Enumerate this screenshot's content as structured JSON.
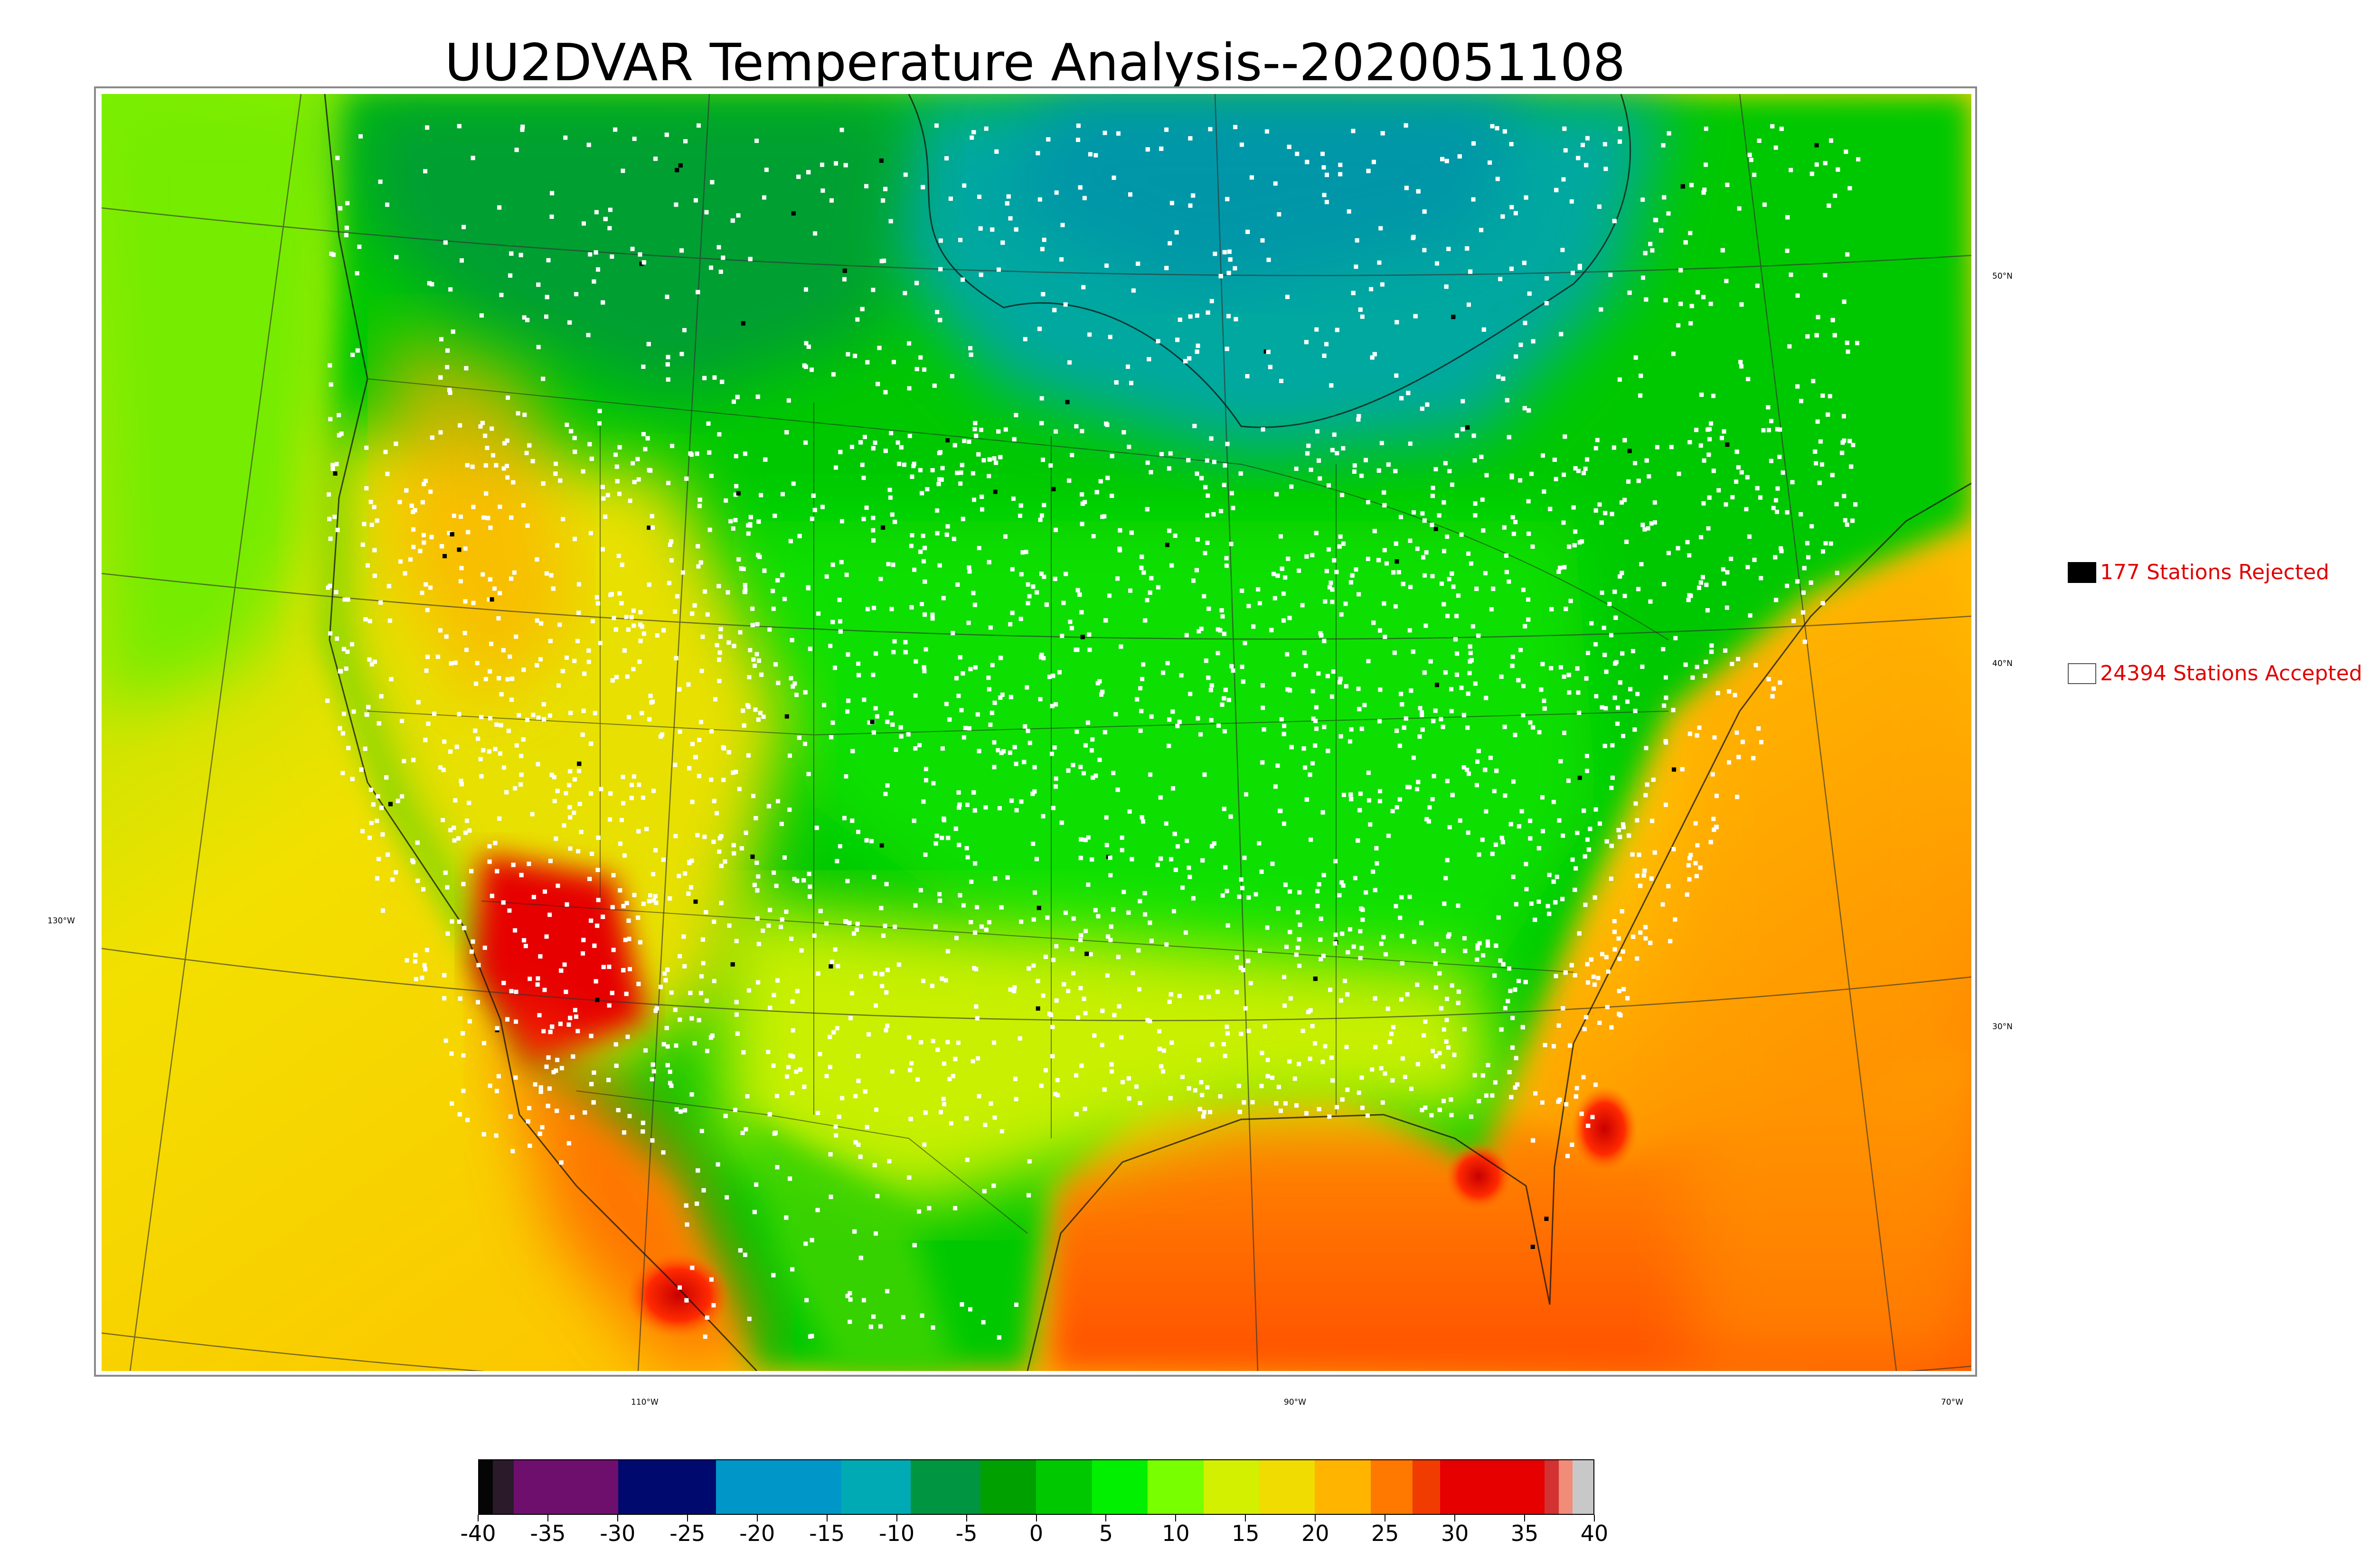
{
  "title": "UU2DVAR Temperature Analysis--2020051108",
  "legend": {
    "rejected": {
      "label": "177 Stations Rejected",
      "count": 177,
      "swatch_color": "#000000"
    },
    "accepted": {
      "label": "24394 Stations Accepted",
      "count": 24394,
      "swatch_color": "#ffffff"
    }
  },
  "grid_labels": {
    "lat_50": "50°N",
    "lat_40": "40°N",
    "lat_30": "30°N",
    "lon_130": "130°W",
    "lon_110": "110°W",
    "lon_90": "90°W",
    "lon_70": "70°W"
  },
  "colorbar": {
    "ticks": [
      "-40",
      "-35",
      "-30",
      "-25",
      "-20",
      "-15",
      "-10",
      "-5",
      "0",
      "5",
      "10",
      "15",
      "20",
      "25",
      "30",
      "35",
      "40"
    ],
    "range": [
      -40,
      40
    ],
    "segments": [
      {
        "from": -40,
        "to": -39,
        "color": "#050505"
      },
      {
        "from": -39,
        "to": -37.5,
        "color": "#2a1a2a"
      },
      {
        "from": -37.5,
        "to": -30,
        "color": "#6e0f6e"
      },
      {
        "from": -30,
        "to": -23,
        "color": "#000a6e"
      },
      {
        "from": -23,
        "to": -14,
        "color": "#0096c8"
      },
      {
        "from": -14,
        "to": -9,
        "color": "#00aab4"
      },
      {
        "from": -9,
        "to": -4,
        "color": "#009641"
      },
      {
        "from": -4,
        "to": 0,
        "color": "#00a000"
      },
      {
        "from": 0,
        "to": 4,
        "color": "#00c800"
      },
      {
        "from": 4,
        "to": 8,
        "color": "#00f000"
      },
      {
        "from": 8,
        "to": 12,
        "color": "#78ff00"
      },
      {
        "from": 12,
        "to": 16,
        "color": "#d2f000"
      },
      {
        "from": 16,
        "to": 20,
        "color": "#f0dc00"
      },
      {
        "from": 20,
        "to": 24,
        "color": "#ffb400"
      },
      {
        "from": 24,
        "to": 27,
        "color": "#ff7800"
      },
      {
        "from": 27,
        "to": 29,
        "color": "#f03c00"
      },
      {
        "from": 29,
        "to": 36.5,
        "color": "#e60000"
      },
      {
        "from": 36.5,
        "to": 37.5,
        "color": "#d23232"
      },
      {
        "from": 37.5,
        "to": 38.5,
        "color": "#f08c78"
      },
      {
        "from": 38.5,
        "to": 40,
        "color": "#c8c8c8"
      }
    ]
  },
  "colors": {
    "ocean_warm": "#f5d800",
    "gulf_hot": "#ff7400",
    "land_cool": "#00c400",
    "canada_cold": "#00a8a0",
    "desert_hot": "#e40000",
    "station_accepted": "#ffffff",
    "station_rejected": "#000000"
  }
}
